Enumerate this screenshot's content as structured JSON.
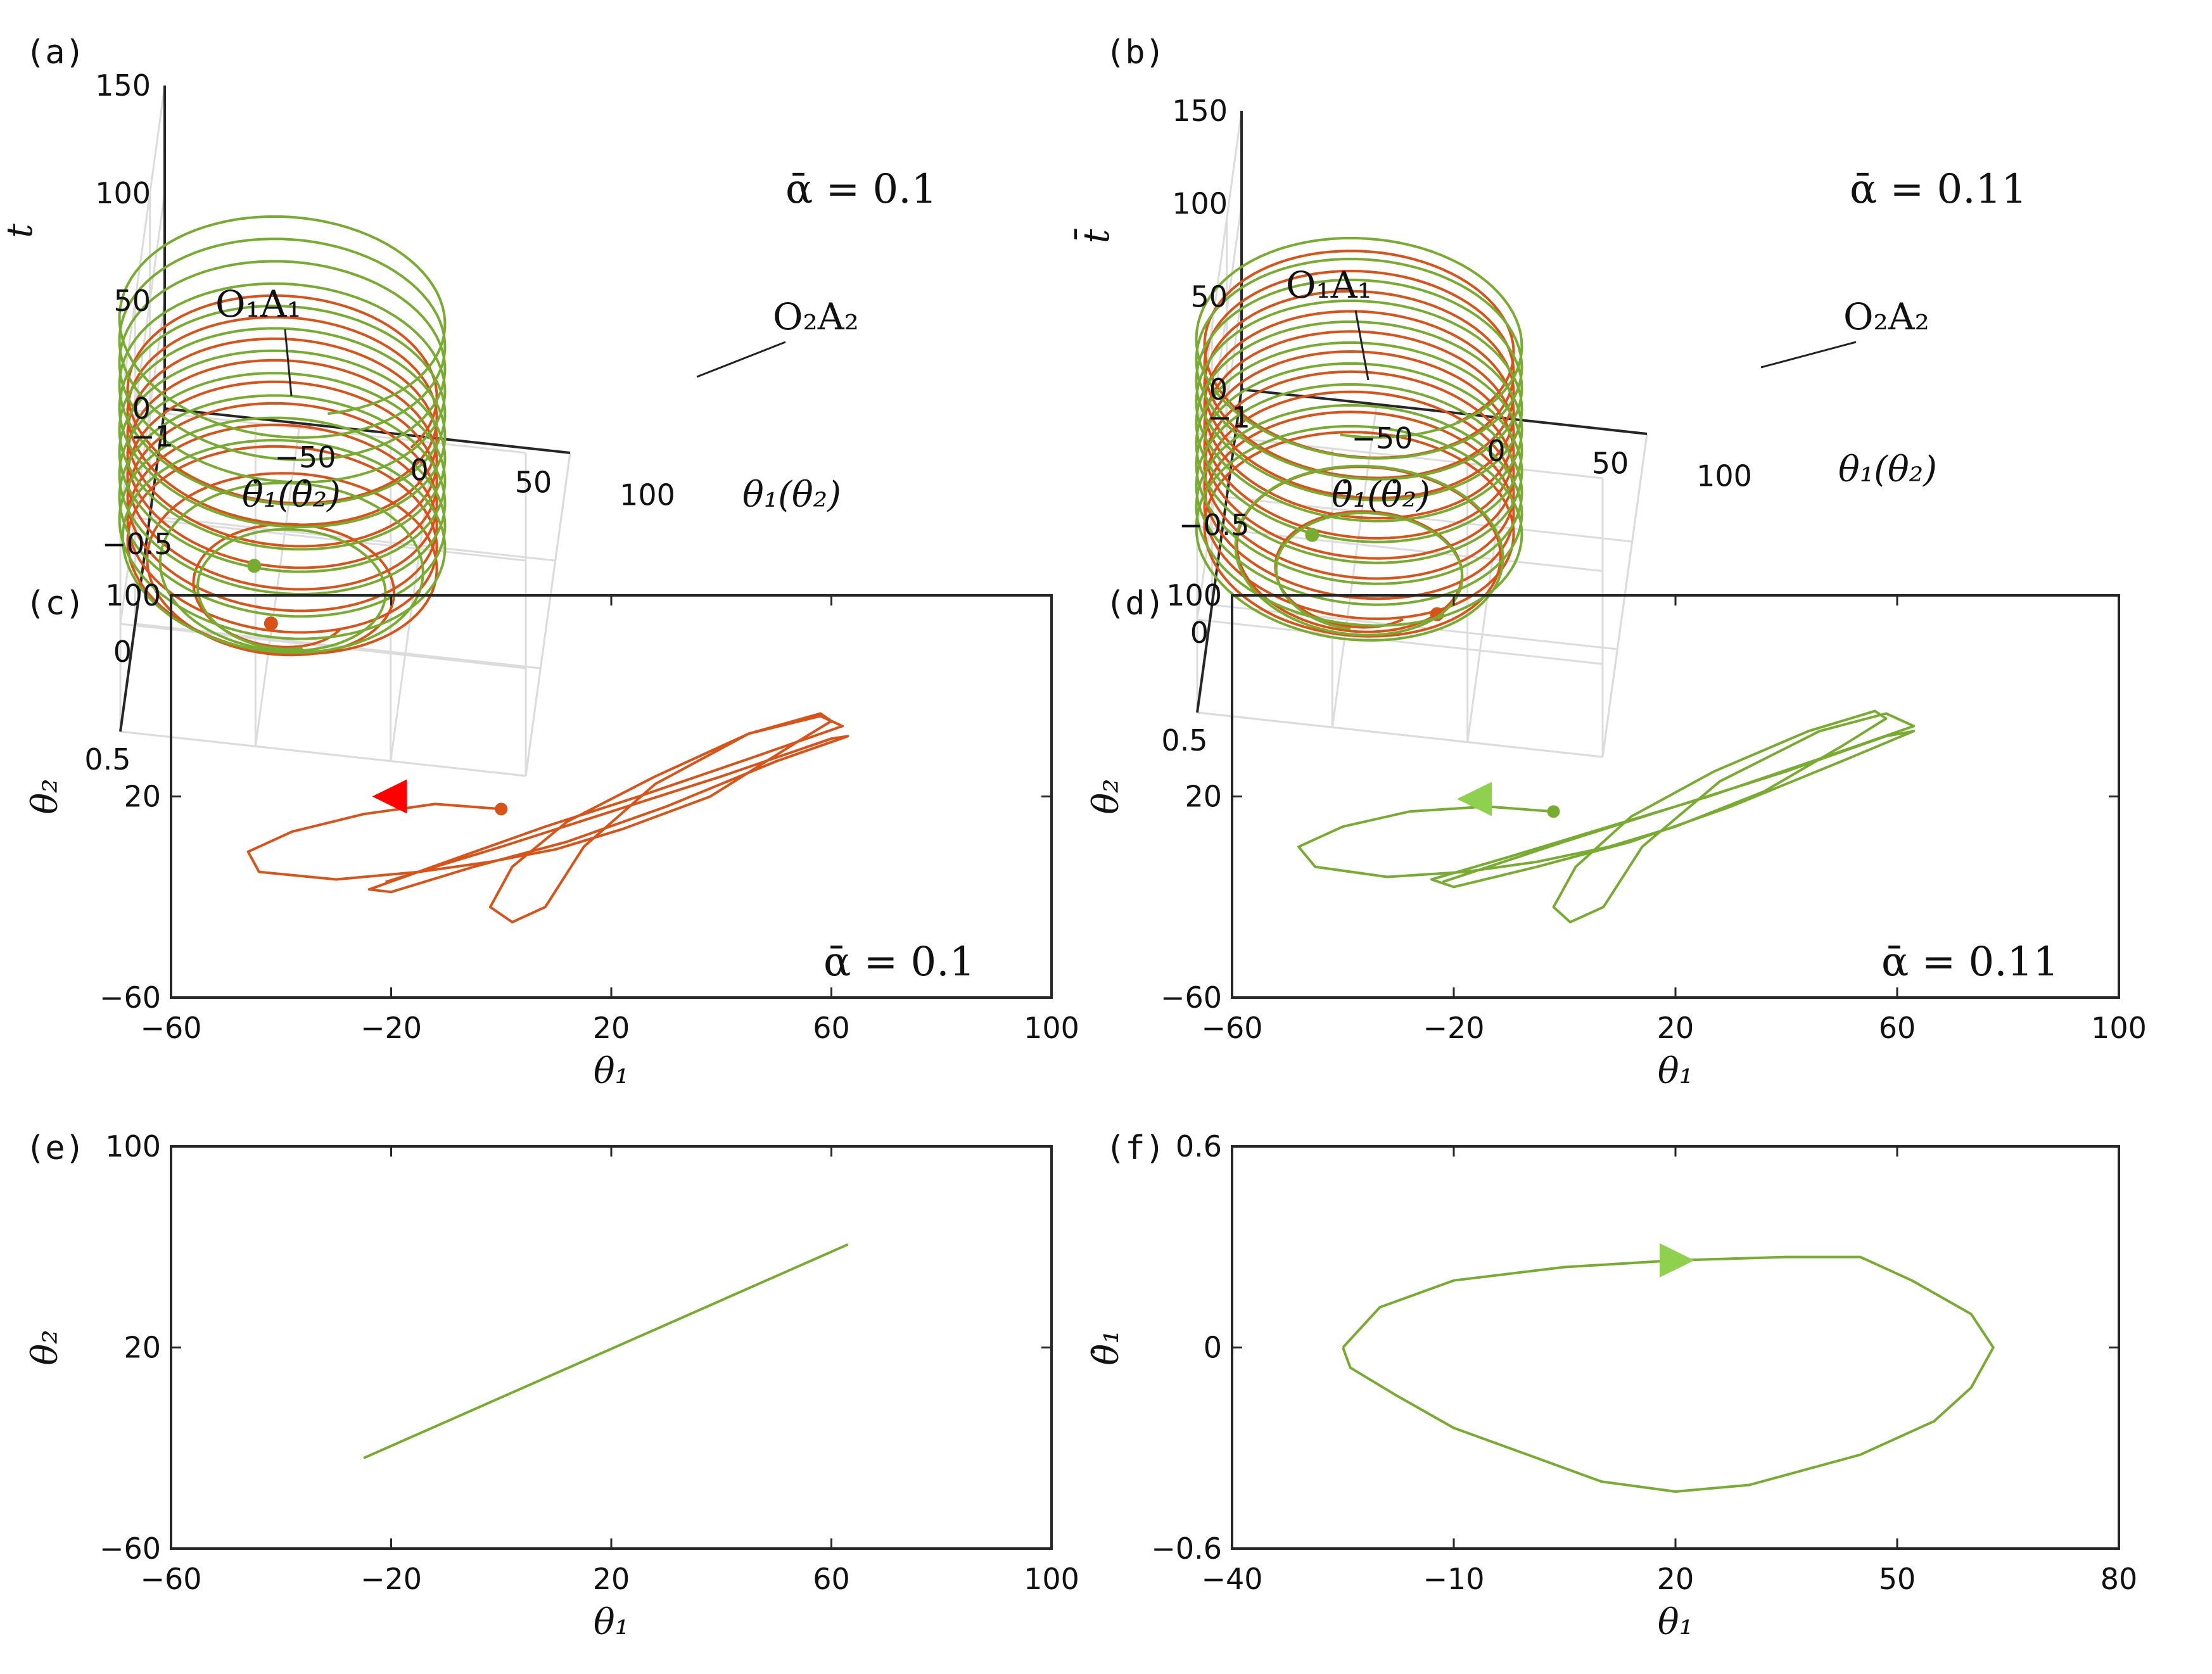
{
  "colors": {
    "orange": "#d95319",
    "green": "#77ac30",
    "green_marker": "#8fd14f",
    "red_marker": "#ff0000",
    "grid": "#dcdcdc",
    "axis": "#262626"
  },
  "panels": {
    "a": {
      "label": "(a)",
      "annotation": "ᾱ = 0.1",
      "curve1_label": "O₁A₁",
      "curve2_label": "O₂A₂"
    },
    "b": {
      "label": "(b)",
      "annotation": "ᾱ = 0.11",
      "curve1_label": "O₁A₁",
      "curve2_label": "O₂A₂"
    },
    "c": {
      "label": "(c)",
      "annotation": "ᾱ = 0.1"
    },
    "d": {
      "label": "(d)",
      "annotation": "ᾱ = 0.11"
    },
    "e": {
      "label": "(e)"
    },
    "f": {
      "label": "(f)"
    }
  },
  "chart_data": [
    {
      "id": "a",
      "type": "line",
      "projection": "3d",
      "title": "",
      "axes": {
        "x": {
          "label": "θ₁(θ₂)",
          "ticks": [
            "−50",
            "0",
            "50",
            "100"
          ],
          "range": [
            -60,
            100
          ]
        },
        "y": {
          "label": "θ̇₁(θ̇₂)",
          "ticks": [
            "0.5",
            "0",
            "−0.5",
            "−1"
          ],
          "range": [
            -1,
            0.5
          ]
        },
        "z": {
          "label": "t̄",
          "ticks": [
            "0",
            "50",
            "100",
            "150"
          ],
          "range": [
            0,
            150
          ]
        }
      },
      "series": [
        {
          "label": "O₁A₁",
          "color": "orange",
          "turns": 10,
          "t_end": 100
        },
        {
          "label": "O₂A₂",
          "color": "green",
          "turns": 13,
          "t_end": 135
        }
      ],
      "grid": true
    },
    {
      "id": "b",
      "type": "line",
      "projection": "3d",
      "title": "",
      "axes": {
        "x": {
          "label": "θ₁(θ₂)",
          "ticks": [
            "−50",
            "0",
            "50",
            "100"
          ],
          "range": [
            -60,
            100
          ]
        },
        "y": {
          "label": "θ̇₁(θ̇₂)",
          "ticks": [
            "0.5",
            "0",
            "−0.5",
            "−1"
          ],
          "range": [
            -1,
            0.5
          ]
        },
        "z": {
          "label": "t̄",
          "ticks": [
            "0",
            "50",
            "100",
            "150"
          ],
          "range": [
            0,
            150
          ]
        }
      },
      "series": [
        {
          "label": "O₁A₁",
          "color": "orange",
          "turns": 12,
          "t_end": 130
        },
        {
          "label": "O₂A₂",
          "color": "green",
          "turns": 12,
          "t_end": 135
        }
      ],
      "grid": true
    },
    {
      "id": "c",
      "type": "line",
      "xlabel": "θ₁",
      "ylabel": "θ₂",
      "xlim": [
        -60,
        100
      ],
      "ylim": [
        -60,
        100
      ],
      "xticks": [
        "−60",
        "−20",
        "20",
        "60",
        "100"
      ],
      "yticks": [
        "−60",
        "20",
        "100"
      ],
      "series": [
        {
          "color": "orange",
          "start": [
            0,
            15
          ],
          "path": [
            [
              0,
              15
            ],
            [
              -12,
              17
            ],
            [
              -25,
              13
            ],
            [
              -38,
              6
            ],
            [
              -46,
              -2
            ],
            [
              -44,
              -10
            ],
            [
              -30,
              -13
            ],
            [
              -15,
              -10
            ],
            [
              -2,
              -6
            ],
            [
              10,
              -1
            ],
            [
              22,
              7
            ],
            [
              38,
              20
            ],
            [
              54,
              42
            ],
            [
              60,
              50
            ],
            [
              58,
              53
            ],
            [
              45,
              45
            ],
            [
              28,
              28
            ],
            [
              12,
              10
            ],
            [
              2,
              -8
            ],
            [
              -2,
              -24
            ],
            [
              2,
              -30
            ],
            [
              8,
              -24
            ],
            [
              15,
              0
            ],
            [
              28,
              25
            ],
            [
              45,
              45
            ],
            [
              58,
              52
            ],
            [
              62,
              48
            ],
            [
              45,
              35
            ],
            [
              25,
              20
            ],
            [
              8,
              8
            ],
            [
              -10,
              -6
            ],
            [
              -24,
              -17
            ],
            [
              -20,
              -18
            ],
            [
              -5,
              -8
            ],
            [
              12,
              2
            ],
            [
              30,
              16
            ],
            [
              50,
              34
            ],
            [
              63,
              44
            ],
            [
              60,
              43
            ],
            [
              40,
              28
            ],
            [
              20,
              14
            ],
            [
              0,
              0
            ],
            [
              -21,
              -14
            ]
          ]
        }
      ],
      "marker": {
        "type": "triangle-left",
        "at": [
          -20,
          20
        ],
        "color": "red_marker"
      }
    },
    {
      "id": "d",
      "type": "line",
      "xlabel": "θ₁",
      "ylabel": "θ₂",
      "xlim": [
        -60,
        100
      ],
      "ylim": [
        -60,
        100
      ],
      "xticks": [
        "−60",
        "−20",
        "20",
        "60",
        "100"
      ],
      "yticks": [
        "−60",
        "20",
        "100"
      ],
      "series": [
        {
          "color": "green",
          "start": [
            -2,
            14
          ],
          "path": [
            [
              -2,
              14
            ],
            [
              -14,
              16
            ],
            [
              -28,
              14
            ],
            [
              -40,
              8
            ],
            [
              -48,
              0
            ],
            [
              -45,
              -8
            ],
            [
              -32,
              -12
            ],
            [
              -18,
              -10
            ],
            [
              -5,
              -6
            ],
            [
              8,
              0
            ],
            [
              20,
              8
            ],
            [
              36,
              22
            ],
            [
              50,
              40
            ],
            [
              58,
              51
            ],
            [
              56,
              54
            ],
            [
              44,
              46
            ],
            [
              27,
              30
            ],
            [
              12,
              12
            ],
            [
              2,
              -8
            ],
            [
              -2,
              -24
            ],
            [
              1,
              -30
            ],
            [
              7,
              -24
            ],
            [
              14,
              0
            ],
            [
              28,
              26
            ],
            [
              46,
              46
            ],
            [
              58,
              53
            ],
            [
              63,
              48
            ],
            [
              46,
              35
            ],
            [
              26,
              20
            ],
            [
              8,
              8
            ],
            [
              -10,
              -4
            ],
            [
              -24,
              -13
            ],
            [
              -20,
              -16
            ],
            [
              -5,
              -8
            ],
            [
              12,
              2
            ],
            [
              30,
              16
            ],
            [
              50,
              34
            ],
            [
              63,
              46
            ],
            [
              58,
              44
            ],
            [
              40,
              30
            ],
            [
              20,
              16
            ],
            [
              0,
              2
            ],
            [
              -22,
              -14
            ]
          ]
        }
      ],
      "marker": {
        "type": "triangle-left",
        "at": [
          -16,
          19
        ],
        "color": "green_marker"
      }
    },
    {
      "id": "e",
      "type": "line",
      "xlabel": "θ₁",
      "ylabel": "θ₂",
      "xlim": [
        -60,
        100
      ],
      "ylim": [
        -60,
        100
      ],
      "xticks": [
        "−60",
        "−20",
        "20",
        "60",
        "100"
      ],
      "yticks": [
        "−60",
        "20",
        "100"
      ],
      "series": [
        {
          "color": "green",
          "path": [
            [
              -25,
              -24
            ],
            [
              63,
              61
            ]
          ]
        }
      ]
    },
    {
      "id": "f",
      "type": "line",
      "xlabel": "θ₁",
      "ylabel": "θ̇₁",
      "xlim": [
        -40,
        80
      ],
      "ylim": [
        -0.6,
        0.6
      ],
      "xticks": [
        "−40",
        "−10",
        "20",
        "50",
        "80"
      ],
      "yticks": [
        "−0.6",
        "0",
        "0.6"
      ],
      "series": [
        {
          "color": "green",
          "path": [
            [
              -25,
              0
            ],
            [
              -20,
              0.12
            ],
            [
              -10,
              0.2
            ],
            [
              5,
              0.24
            ],
            [
              20,
              0.26
            ],
            [
              35,
              0.27
            ],
            [
              45,
              0.27
            ],
            [
              52,
              0.2
            ],
            [
              60,
              0.1
            ],
            [
              63,
              0
            ],
            [
              60,
              -0.12
            ],
            [
              55,
              -0.22
            ],
            [
              45,
              -0.32
            ],
            [
              30,
              -0.41
            ],
            [
              20,
              -0.43
            ],
            [
              10,
              -0.4
            ],
            [
              0,
              -0.32
            ],
            [
              -10,
              -0.24
            ],
            [
              -18,
              -0.14
            ],
            [
              -24,
              -0.06
            ],
            [
              -25,
              0
            ]
          ]
        }
      ],
      "marker": {
        "type": "triangle-right",
        "at": [
          20,
          0.26
        ],
        "color": "green_marker"
      }
    }
  ]
}
